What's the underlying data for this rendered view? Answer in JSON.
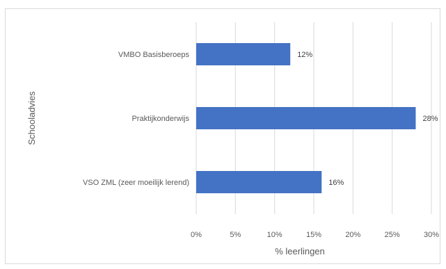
{
  "chart_data": {
    "type": "bar",
    "orientation": "horizontal",
    "categories": [
      "VMBO Basisberoeps",
      "Praktijkonderwijs",
      "VSO ZML (zeer moeilijk lerend)"
    ],
    "values": [
      12,
      28,
      16
    ],
    "data_labels": [
      "12%",
      "28%",
      "16%"
    ],
    "xlabel": "% leerlingen",
    "ylabel": "Schooladvies",
    "xlim": [
      0,
      30
    ],
    "x_ticks": [
      0,
      5,
      10,
      15,
      20,
      25,
      30
    ],
    "x_tick_labels": [
      "0%",
      "5%",
      "10%",
      "15%",
      "20%",
      "25%",
      "30%"
    ],
    "grid": "vertical",
    "legend": "none",
    "bar_color": "#4472c4"
  }
}
